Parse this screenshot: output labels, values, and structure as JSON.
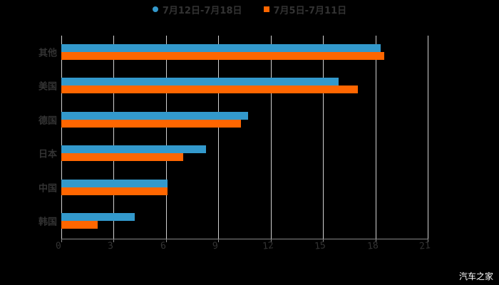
{
  "chart_data": {
    "type": "bar",
    "orientation": "horizontal",
    "title": "",
    "xlabel": "",
    "ylabel": "",
    "xlim": [
      0,
      21
    ],
    "xticks": [
      0,
      3,
      6,
      9,
      12,
      15,
      18,
      21
    ],
    "grid": true,
    "legend_position": "top",
    "categories": [
      "其他",
      "美国",
      "德国",
      "日本",
      "中国",
      "韩国"
    ],
    "series": [
      {
        "name": "7月12日-7月18日",
        "color": "#3399cc",
        "marker": "circle",
        "values": [
          18.3,
          15.9,
          10.7,
          8.3,
          6.1,
          4.2
        ]
      },
      {
        "name": "7月5日-7月11日",
        "color": "#ff6600",
        "marker": "square",
        "values": [
          18.5,
          17.0,
          10.3,
          7.0,
          6.1,
          2.1
        ]
      }
    ]
  },
  "legend": {
    "items": [
      {
        "label": "7月12日-7月18日",
        "color": "#3399cc"
      },
      {
        "label": "7月5日-7月11日",
        "color": "#ff6600"
      }
    ]
  },
  "watermark": "汽车之家"
}
